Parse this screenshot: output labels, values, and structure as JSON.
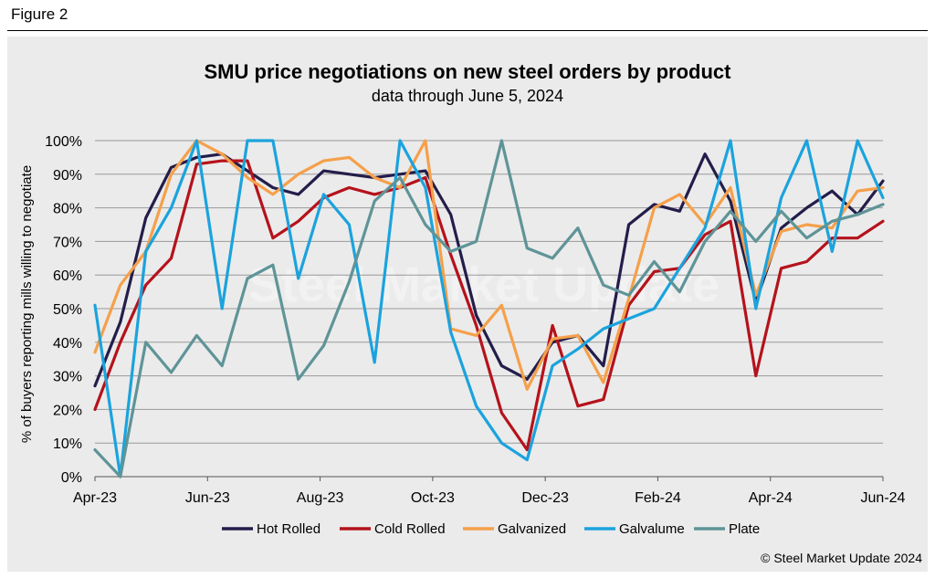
{
  "figure_label": "Figure 2",
  "credit": "© Steel Market Update 2024",
  "watermark": "Steel Market Update",
  "colors": {
    "Hot Rolled": "#231d4a",
    "Cold Rolled": "#b5121b",
    "Galvanized": "#f5a04a",
    "Galvalume": "#1ba3dd",
    "Plate": "#5f9497"
  },
  "chart_data": {
    "type": "line",
    "title": "SMU price negotiations on new steel orders by product",
    "subtitle": "data through June 5, 2024",
    "ylabel": "% of buyers reporting mills willing to negotiate",
    "xlabel": "",
    "ylim": [
      0,
      100
    ],
    "yticks": [
      "0%",
      "10%",
      "20%",
      "30%",
      "40%",
      "50%",
      "60%",
      "70%",
      "80%",
      "90%",
      "100%"
    ],
    "xticks": [
      "Apr-23",
      "Jun-23",
      "Aug-23",
      "Oct-23",
      "Dec-23",
      "Feb-24",
      "Apr-24",
      "Jun-24"
    ],
    "grid": "horizontal",
    "legend": "bottom",
    "series": [
      {
        "name": "Hot Rolled",
        "values": [
          27,
          46,
          77,
          92,
          95,
          96,
          91,
          86,
          84,
          91,
          90,
          89,
          90,
          91,
          78,
          48,
          33,
          29,
          40,
          42,
          33,
          75,
          81,
          79,
          96,
          82,
          52,
          74,
          80,
          85,
          78,
          88
        ]
      },
      {
        "name": "Cold Rolled",
        "values": [
          20,
          40,
          57,
          65,
          93,
          94,
          94,
          71,
          76,
          83,
          86,
          84,
          86,
          89,
          66,
          45,
          19,
          8,
          45,
          21,
          23,
          51,
          61,
          62,
          72,
          76,
          30,
          62,
          64,
          71,
          71,
          76
        ]
      },
      {
        "name": "Galvanized",
        "values": [
          37,
          57,
          67,
          90,
          100,
          96,
          89,
          84,
          90,
          94,
          95,
          89,
          86,
          100,
          44,
          42,
          51,
          26,
          41,
          42,
          28,
          53,
          80,
          84,
          75,
          86,
          54,
          73,
          75,
          74,
          85,
          86
        ]
      },
      {
        "name": "Galvalume",
        "values": [
          51,
          0,
          67,
          80,
          100,
          50,
          100,
          100,
          59,
          84,
          75,
          34,
          100,
          86,
          43,
          21,
          10,
          5,
          33,
          38,
          44,
          47,
          50,
          62,
          74,
          100,
          50,
          83,
          100,
          67,
          100,
          83
        ]
      },
      {
        "name": "Plate",
        "values": [
          8,
          0,
          40,
          31,
          42,
          33,
          59,
          63,
          29,
          39,
          58,
          82,
          89,
          75,
          67,
          70,
          100,
          68,
          65,
          74,
          57,
          54,
          64,
          55,
          70,
          79,
          70,
          79,
          71,
          76,
          78,
          81
        ]
      }
    ]
  }
}
